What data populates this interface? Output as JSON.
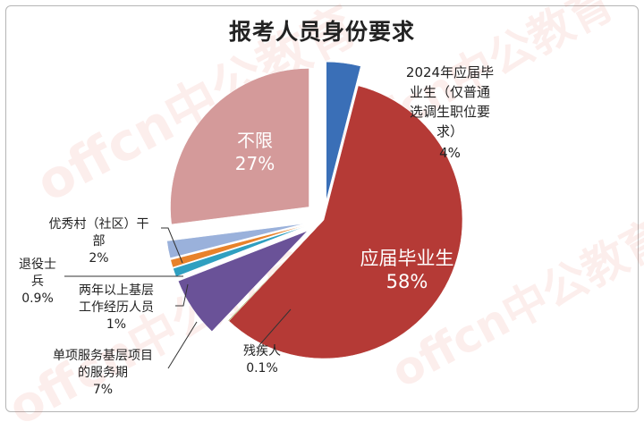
{
  "watermark": {
    "text": "offcn中公教育"
  },
  "chart_data": {
    "type": "pie",
    "title": "报考人员身份要求",
    "unit": "%",
    "slices": [
      {
        "name": "2024年应届毕业生（仅普通选调生职位要求）",
        "label_lines": [
          "2024年应届毕",
          "业生（仅普通",
          "选调生职位要",
          "求）"
        ],
        "value": 4,
        "value_label": "4%",
        "color": "#3a6fb7",
        "exploded": true
      },
      {
        "name": "应届毕业生",
        "label_lines": [
          "应届毕业生"
        ],
        "value": 58,
        "value_label": "58%",
        "color": "#b53a36",
        "exploded": false
      },
      {
        "name": "残疾人",
        "label_lines": [
          "残疾人"
        ],
        "value": 0.1,
        "value_label": "0.1%",
        "color": "#8aa33c",
        "exploded": false
      },
      {
        "name": "单项服务基层项目的服务期",
        "label_lines": [
          "单项服务基层项目",
          "的服务期"
        ],
        "value": 7,
        "value_label": "7%",
        "color": "#6a5298",
        "exploded": true
      },
      {
        "name": "两年以上基层工作经历人员",
        "label_lines": [
          "两年以上基层",
          "工作经历人员"
        ],
        "value": 1,
        "value_label": "1%",
        "color": "#2f9fc0",
        "exploded": true
      },
      {
        "name": "退役士兵",
        "label_lines": [
          "退役士",
          "兵"
        ],
        "value": 0.9,
        "value_label": "0.9%",
        "color": "#e8822a",
        "exploded": true
      },
      {
        "name": "优秀村（社区）干部",
        "label_lines": [
          "优秀村（社区）干",
          "部"
        ],
        "value": 2,
        "value_label": "2%",
        "color": "#9ab1db",
        "exploded": true
      },
      {
        "name": "不限",
        "label_lines": [
          "不限"
        ],
        "value": 27,
        "value_label": "27%",
        "color": "#d49a9a",
        "exploded": true
      }
    ]
  }
}
